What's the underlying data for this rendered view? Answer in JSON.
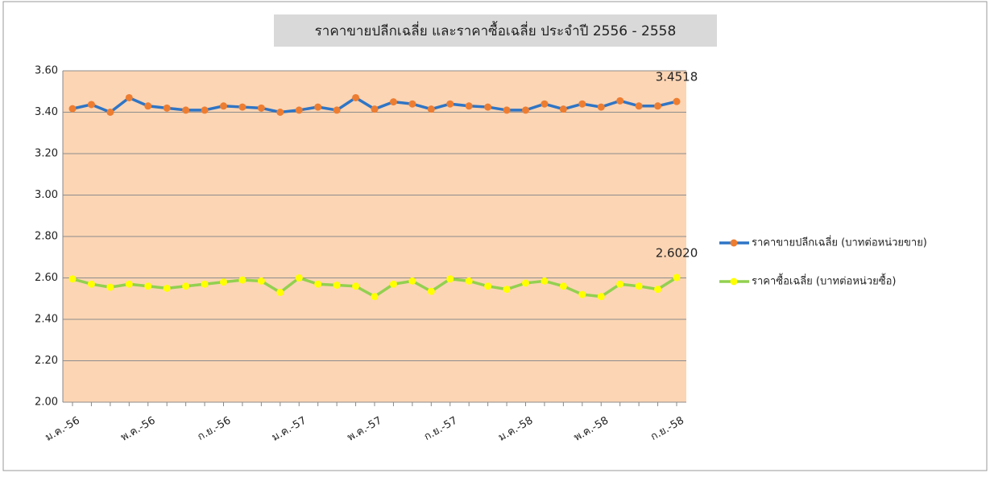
{
  "chart_data": {
    "type": "line",
    "title": "ราคาขายปลีกเฉลี่ย และราคาซื้อเฉลี่ย ประจำปี 2556 - 2558",
    "categories": [
      "ม.ค.-56",
      null,
      null,
      null,
      "พ.ค.-56",
      null,
      null,
      null,
      "ก.ย.-56",
      null,
      null,
      null,
      "ม.ค.-57",
      null,
      null,
      null,
      "พ.ค.-57",
      null,
      null,
      null,
      "ก.ย.-57",
      null,
      null,
      null,
      "ม.ค.-58",
      null,
      null,
      null,
      "พ.ค.-58",
      null,
      null,
      null,
      "ก.ย.-58"
    ],
    "series": [
      {
        "name": "ราคาขายปลีกเฉลี่ย (บาทต่อหน่วยขาย)",
        "color": "#2e75c6",
        "marker_color": "#ed7d31",
        "values": [
          3.417,
          3.437,
          3.4,
          3.47,
          3.43,
          3.42,
          3.41,
          3.41,
          3.43,
          3.425,
          3.42,
          3.4,
          3.41,
          3.425,
          3.41,
          3.47,
          3.415,
          3.45,
          3.44,
          3.415,
          3.44,
          3.43,
          3.425,
          3.41,
          3.41,
          3.44,
          3.415,
          3.44,
          3.425,
          3.455,
          3.43,
          3.43,
          3.4518
        ],
        "value_labels": [
          null,
          null,
          null,
          null,
          null,
          null,
          null,
          null,
          null,
          null,
          null,
          null,
          null,
          null,
          null,
          null,
          null,
          null,
          null,
          null,
          null,
          null,
          null,
          null,
          null,
          null,
          null,
          null,
          null,
          null,
          null,
          null,
          "3.4518"
        ]
      },
      {
        "name": "ราคาซื้อเฉลี่ย (บาทต่อหน่วยซื้อ)",
        "color": "#92d050",
        "marker_color": "#ffff00",
        "values": [
          2.595,
          2.57,
          2.555,
          2.57,
          2.56,
          2.55,
          2.56,
          2.57,
          2.58,
          2.59,
          2.585,
          2.53,
          2.6,
          2.57,
          2.565,
          2.56,
          2.51,
          2.57,
          2.585,
          2.535,
          2.595,
          2.585,
          2.56,
          2.545,
          2.575,
          2.585,
          2.56,
          2.52,
          2.51,
          2.57,
          2.56,
          2.545,
          2.602
        ],
        "value_labels": [
          null,
          null,
          null,
          null,
          null,
          null,
          null,
          null,
          null,
          null,
          null,
          null,
          null,
          null,
          null,
          null,
          null,
          null,
          null,
          null,
          null,
          null,
          null,
          null,
          null,
          null,
          null,
          null,
          null,
          null,
          null,
          null,
          "2.6020"
        ]
      }
    ],
    "ylim": [
      2,
      3.6
    ],
    "yticks": [
      {
        "value": 2,
        "label": "2.00"
      },
      {
        "value": 2.2,
        "label": "2.20"
      },
      {
        "value": 2.4,
        "label": "2.40"
      },
      {
        "value": 2.6,
        "label": "2.60"
      },
      {
        "value": 2.8,
        "label": "2.80"
      },
      {
        "value": 3,
        "label": "3.00"
      },
      {
        "value": 3.2,
        "label": "3.20"
      },
      {
        "value": 3.4,
        "label": "3.40"
      },
      {
        "value": 3.6,
        "label": "3.60"
      }
    ],
    "grid": true,
    "legend": "right",
    "plot_background": "#fcd5b4"
  }
}
